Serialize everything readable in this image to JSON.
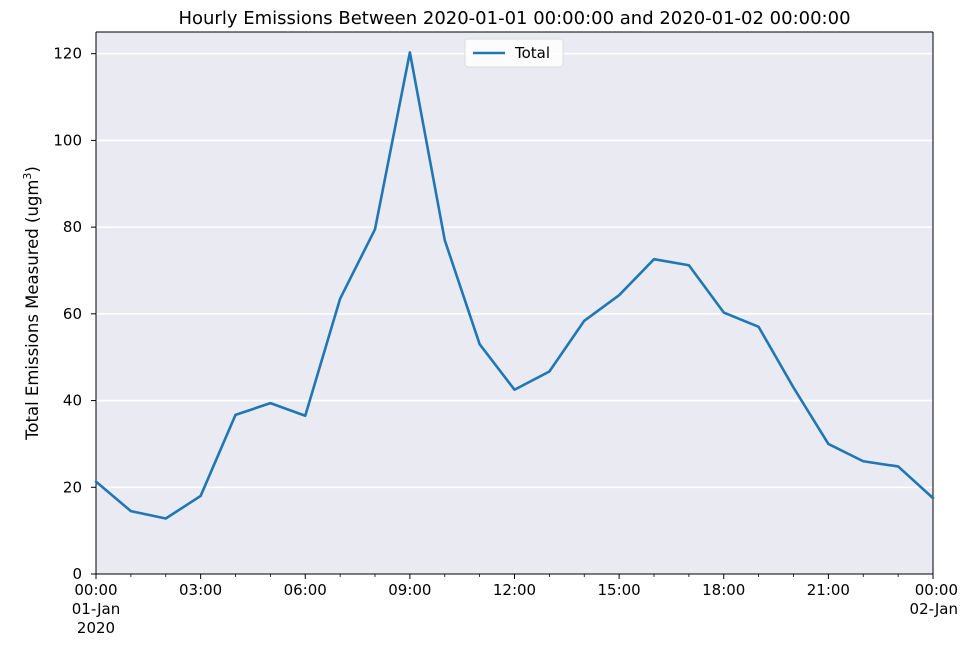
{
  "chart_data": {
    "type": "line",
    "title": "Hourly Emissions Between 2020-01-01 00:00:00 and 2020-01-02 00:00:00",
    "xlabel": "",
    "ylabel": "Total Emissions Measured (ugm",
    "ylabel_superscript": "3",
    "ylabel_suffix": ")",
    "ylim": [
      0,
      125
    ],
    "y_ticks": [
      "0",
      "20",
      "40",
      "60",
      "80",
      "100",
      "120"
    ],
    "xlim": [
      "2020-01-01 00:00",
      "2020-01-02 00:00"
    ],
    "x_ticks": [
      {
        "hour": 0,
        "lines": [
          "00:00",
          "01-Jan",
          "2020"
        ]
      },
      {
        "hour": 3,
        "lines": [
          "03:00"
        ]
      },
      {
        "hour": 6,
        "lines": [
          "06:00"
        ]
      },
      {
        "hour": 9,
        "lines": [
          "09:00"
        ]
      },
      {
        "hour": 12,
        "lines": [
          "12:00"
        ]
      },
      {
        "hour": 15,
        "lines": [
          "15:00"
        ]
      },
      {
        "hour": 18,
        "lines": [
          "18:00"
        ]
      },
      {
        "hour": 21,
        "lines": [
          "21:00"
        ]
      },
      {
        "hour": 24,
        "lines": [
          "00:00",
          "02-Jan"
        ]
      }
    ],
    "grid": "horizontal",
    "legend_position": "top-center",
    "series": [
      {
        "name": "Total",
        "color": "#1f77b4",
        "x": [
          "2020-01-01 00:00",
          "2020-01-01 01:00",
          "2020-01-01 02:00",
          "2020-01-01 03:00",
          "2020-01-01 04:00",
          "2020-01-01 05:00",
          "2020-01-01 06:00",
          "2020-01-01 07:00",
          "2020-01-01 08:00",
          "2020-01-01 09:00",
          "2020-01-01 10:00",
          "2020-01-01 11:00",
          "2020-01-01 12:00",
          "2020-01-01 13:00",
          "2020-01-01 14:00",
          "2020-01-01 15:00",
          "2020-01-01 16:00",
          "2020-01-01 17:00",
          "2020-01-01 18:00",
          "2020-01-01 19:00",
          "2020-01-01 20:00",
          "2020-01-01 21:00",
          "2020-01-01 22:00",
          "2020-01-01 23:00",
          "2020-01-02 00:00"
        ],
        "values": [
          21.3,
          14.5,
          12.8,
          18.0,
          36.7,
          39.4,
          36.5,
          63.5,
          79.5,
          120.3,
          77.0,
          53.0,
          42.5,
          46.7,
          58.4,
          64.3,
          72.6,
          71.2,
          60.3,
          57.0,
          43.0,
          30.0,
          26.0,
          24.8,
          17.5
        ]
      }
    ]
  },
  "colors": {
    "plot_background": "#eaeaf2",
    "grid": "#ffffff",
    "line": "#1f77b4"
  }
}
